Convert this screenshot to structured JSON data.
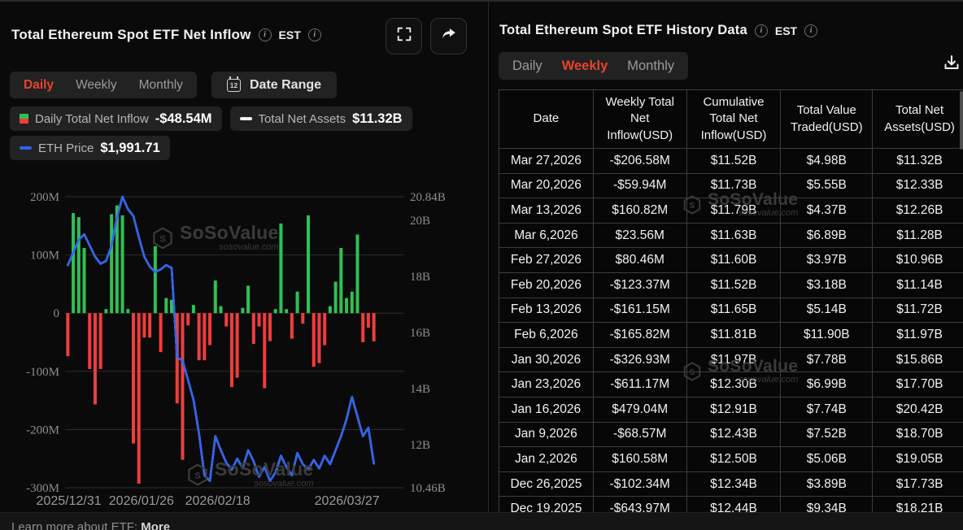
{
  "left_panel": {
    "title": "Total Ethereum Spot ETF Net Inflow",
    "timezone": "EST",
    "tabs": [
      {
        "label": "Daily",
        "active": true
      },
      {
        "label": "Weekly",
        "active": false
      },
      {
        "label": "Monthly",
        "active": false
      }
    ],
    "date_range_label": "Date Range",
    "calendar_day": "12",
    "legend": [
      {
        "label": "Daily Total Net Inflow",
        "value": "-$48.54M",
        "icon": "candle-green-red-icon"
      },
      {
        "label": "Total Net Assets",
        "value": "$11.32B",
        "icon": "white-dash-icon"
      },
      {
        "label": "ETH Price",
        "value": "$1,991.71",
        "icon": "blue-dash-icon"
      }
    ]
  },
  "chart_data": {
    "type": "combo-bar-line",
    "title": "Total Ethereum Spot ETF Net Inflow",
    "x_tick_labels": [
      {
        "label": "2025/12/31",
        "f": 0.012
      },
      {
        "label": "2026/01/26",
        "f": 0.245
      },
      {
        "label": "2026/02/18",
        "f": 0.49
      },
      {
        "label": "2026/03/27",
        "f": 0.905
      }
    ],
    "left_axis": {
      "unit": "USD",
      "min": -300,
      "max": 200,
      "ticks": [
        {
          "label": "200M",
          "value": 200
        },
        {
          "label": "100M",
          "value": 100
        },
        {
          "label": "0",
          "value": 0
        },
        {
          "label": "-100M",
          "value": -100
        },
        {
          "label": "-200M",
          "value": -200
        },
        {
          "label": "-300M",
          "value": -300
        }
      ]
    },
    "right_axis": {
      "unit": "USD",
      "min": 10.46,
      "max": 20.84,
      "ticks": [
        {
          "label": "20.84B",
          "value": 20.84
        },
        {
          "label": "20B",
          "value": 20
        },
        {
          "label": "18B",
          "value": 18
        },
        {
          "label": "16B",
          "value": 16
        },
        {
          "label": "14B",
          "value": 14
        },
        {
          "label": "12B",
          "value": 12
        },
        {
          "label": "10.46B",
          "value": 10.46
        }
      ]
    },
    "eth_axis": {
      "min": 1841,
      "max": 3668
    },
    "series": [
      {
        "name": "Daily Total Net Inflow",
        "type": "bar",
        "unit": "M USD",
        "values": [
          -74,
          172,
          165,
          112,
          -96,
          -157,
          -96,
          7,
          170,
          185,
          168,
          7,
          -224,
          -293,
          -42,
          -42,
          115,
          -67,
          26,
          23,
          -155,
          -252,
          -21,
          14,
          -81,
          -81,
          -55,
          56,
          12,
          -23,
          -127,
          -111,
          9,
          47,
          -53,
          -23,
          -129,
          -48,
          7,
          154,
          7,
          -44,
          37,
          -18,
          168,
          -92,
          -86,
          -55,
          12,
          54,
          112,
          26,
          37,
          135,
          -50,
          -25,
          -48.54
        ]
      },
      {
        "name": "Total Net Assets",
        "type": "line",
        "unit": "B USD",
        "axis": "right",
        "values": [
          18.4,
          18.85,
          19.3,
          19.5,
          19.1,
          18.7,
          18.45,
          18.55,
          19.1,
          20.1,
          20.84,
          20.4,
          20.15,
          19.4,
          18.7,
          18.35,
          18.15,
          18.25,
          18.4,
          18.3,
          15.1,
          15.0,
          14.3,
          13.6,
          12.4,
          10.9,
          10.7,
          12.3,
          11.8,
          11.35,
          11.1,
          11.5,
          11.15,
          11.8,
          11.4,
          10.85,
          11.2,
          10.7,
          11.0,
          11.6,
          11.2,
          10.9,
          11.7,
          11.3,
          11.1,
          11.45,
          11.15,
          11.6,
          11.3,
          11.8,
          12.3,
          12.9,
          13.7,
          13.0,
          12.3,
          12.6,
          11.32
        ]
      },
      {
        "name": "ETH Price",
        "type": "line",
        "unit": "USD",
        "axis": "eth",
        "values": [
          3238,
          3318,
          3397,
          3432,
          3362,
          3291,
          3247,
          3265,
          3362,
          3538,
          3668,
          3590,
          3546,
          3414,
          3291,
          3230,
          3194,
          3212,
          3238,
          3221,
          2658,
          2640,
          2517,
          2394,
          2182,
          1918,
          1883,
          2165,
          2077,
          1998,
          1954,
          2024,
          1962,
          2077,
          2006,
          1910,
          1971,
          1883,
          1936,
          2042,
          1971,
          1918,
          2059,
          1989,
          1954,
          2015,
          1962,
          2042,
          1989,
          2077,
          2165,
          2270,
          2411,
          2288,
          2165,
          2218,
          1991.71
        ]
      }
    ],
    "latest": {
      "daily_net_inflow": "-$48.54M",
      "total_net_assets": "$11.32B",
      "eth_price": "$1,991.71"
    }
  },
  "right_panel": {
    "title": "Total Ethereum Spot ETF History Data",
    "timezone": "EST",
    "tabs": [
      {
        "label": "Daily",
        "active": false
      },
      {
        "label": "Weekly",
        "active": true
      },
      {
        "label": "Monthly",
        "active": false
      }
    ],
    "table": {
      "headers": [
        "Date",
        "Weekly Total Net Inflow(USD)",
        "Cumulative Total Net Inflow(USD)",
        "Total Value Traded(USD)",
        "Total Net Assets(USD)"
      ],
      "rows": [
        [
          "Mar 27,2026",
          "-$206.58M",
          "$11.52B",
          "$4.98B",
          "$11.32B"
        ],
        [
          "Mar 20,2026",
          "-$59.94M",
          "$11.73B",
          "$5.55B",
          "$12.33B"
        ],
        [
          "Mar 13,2026",
          "$160.82M",
          "$11.79B",
          "$4.37B",
          "$12.26B"
        ],
        [
          "Mar 6,2026",
          "$23.56M",
          "$11.63B",
          "$6.89B",
          "$11.28B"
        ],
        [
          "Feb 27,2026",
          "$80.46M",
          "$11.60B",
          "$3.97B",
          "$10.96B"
        ],
        [
          "Feb 20,2026",
          "-$123.37M",
          "$11.52B",
          "$3.18B",
          "$11.14B"
        ],
        [
          "Feb 13,2026",
          "-$161.15M",
          "$11.65B",
          "$5.14B",
          "$11.72B"
        ],
        [
          "Feb 6,2026",
          "-$165.82M",
          "$11.81B",
          "$11.90B",
          "$11.97B"
        ],
        [
          "Jan 30,2026",
          "-$326.93M",
          "$11.97B",
          "$7.78B",
          "$15.86B"
        ],
        [
          "Jan 23,2026",
          "-$611.17M",
          "$12.30B",
          "$6.99B",
          "$17.70B"
        ],
        [
          "Jan 16,2026",
          "$479.04M",
          "$12.91B",
          "$7.74B",
          "$20.42B"
        ],
        [
          "Jan 9,2026",
          "-$68.57M",
          "$12.43B",
          "$7.52B",
          "$18.70B"
        ],
        [
          "Jan 2,2026",
          "$160.58M",
          "$12.50B",
          "$5.06B",
          "$19.05B"
        ],
        [
          "Dec 26,2025",
          "-$102.34M",
          "$12.34B",
          "$3.89B",
          "$17.73B"
        ],
        [
          "Dec 19,2025",
          "-$643.97M",
          "$12.44B",
          "$9.34B",
          "$18.21B"
        ]
      ]
    }
  },
  "watermark": {
    "brand": "SoSoValue",
    "site": "sosovalue.com"
  },
  "footer": {
    "label": "Learn more about ETF:",
    "link": "More"
  },
  "colors": {
    "positive": "#2fc054",
    "negative": "#f23c3c",
    "assets_line": "#f2f2f2",
    "eth_line": "#2f63f0",
    "accent": "#e8432d",
    "grid": "#2d2d2d"
  }
}
